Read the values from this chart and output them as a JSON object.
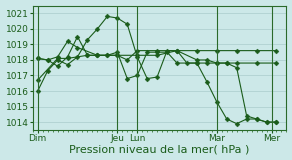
{
  "bg_color": "#cce8e8",
  "grid_color": "#aacccc",
  "line_color": "#1a5c1a",
  "marker_color": "#1a5c1a",
  "xlabel": "Pression niveau de la mer( hPa )",
  "ylim": [
    1013.5,
    1021.5
  ],
  "yticks": [
    1014,
    1015,
    1016,
    1017,
    1018,
    1019,
    1020,
    1021
  ],
  "series": [
    {
      "x": [
        0,
        1,
        2,
        3,
        4,
        5,
        6,
        7,
        8,
        9,
        10,
        11,
        12,
        13,
        14,
        15,
        16,
        17,
        18,
        19,
        20,
        21,
        22,
        23,
        24
      ],
      "y": [
        1016.0,
        1017.3,
        1018.0,
        1017.7,
        1018.2,
        1019.3,
        1020.0,
        1020.8,
        1020.7,
        1020.3,
        1018.2,
        1016.8,
        1016.9,
        1018.6,
        1018.6,
        1017.8,
        1017.8,
        1016.6,
        1015.3,
        1014.2,
        1013.9,
        1014.2,
        1014.2,
        1014.0,
        1014.0
      ],
      "ms": 2.5
    },
    {
      "x": [
        0,
        1,
        2,
        3,
        4,
        6,
        8,
        10,
        12,
        14,
        16,
        18,
        20,
        22,
        24
      ],
      "y": [
        1018.1,
        1018.0,
        1018.2,
        1019.2,
        1018.8,
        1018.3,
        1018.3,
        1018.3,
        1018.3,
        1018.6,
        1018.6,
        1018.6,
        1018.6,
        1018.6,
        1018.6
      ],
      "ms": 2.5
    },
    {
      "x": [
        0,
        1,
        2,
        3,
        4,
        5,
        6,
        7,
        8,
        9,
        10,
        12,
        14,
        16,
        17,
        18,
        19,
        20,
        21,
        22,
        23,
        24
      ],
      "y": [
        1018.1,
        1018.0,
        1017.6,
        1018.2,
        1019.5,
        1018.3,
        1018.3,
        1018.3,
        1018.3,
        1018.0,
        1018.6,
        1018.6,
        1018.6,
        1018.0,
        1018.0,
        1017.8,
        1017.8,
        1017.5,
        1014.4,
        1014.2,
        1014.0,
        1014.0
      ],
      "ms": 2.5
    },
    {
      "x": [
        0,
        2,
        3,
        5,
        6,
        7,
        8,
        9,
        10,
        11,
        12,
        13,
        14,
        16,
        17,
        18,
        19,
        20,
        22,
        24
      ],
      "y": [
        1016.7,
        1018.1,
        1018.1,
        1018.3,
        1018.3,
        1018.3,
        1018.5,
        1016.8,
        1017.0,
        1018.5,
        1018.5,
        1018.5,
        1017.8,
        1017.8,
        1017.8,
        1017.8,
        1017.8,
        1017.8,
        1017.8,
        1017.8
      ],
      "ms": 2.5
    }
  ],
  "major_xtick_positions": [
    0,
    8,
    10,
    18,
    23.5
  ],
  "major_xtick_labels": [
    "Dim",
    "Jeu",
    "Lun",
    "Mar",
    "Mer"
  ],
  "vlines": [
    0,
    8,
    10,
    18,
    23.5
  ],
  "xlim": [
    -0.5,
    25
  ],
  "xlabel_fontsize": 8,
  "tick_fontsize": 6.5
}
